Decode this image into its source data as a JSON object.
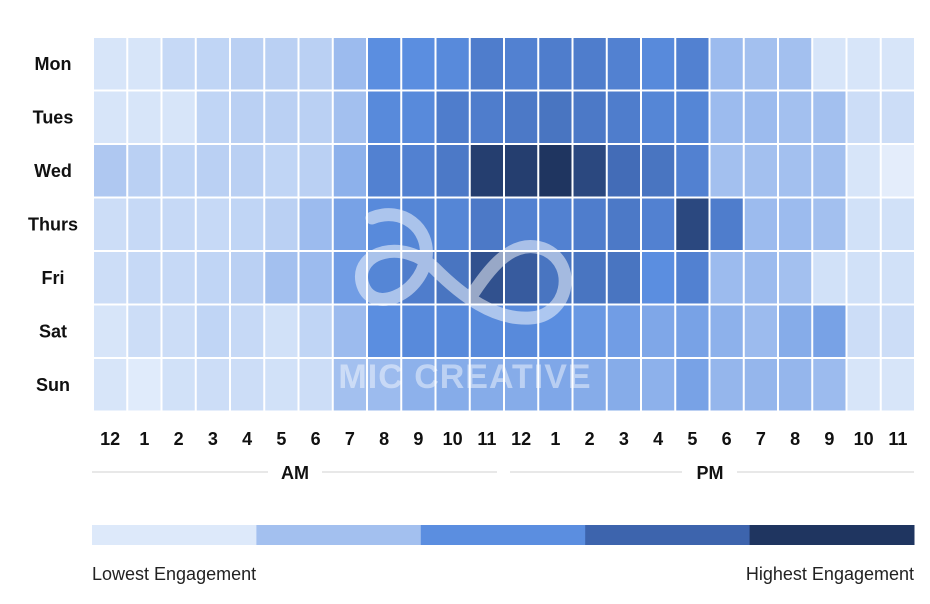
{
  "chart_data": {
    "type": "heatmap",
    "rows": [
      "Mon",
      "Tues",
      "Wed",
      "Thurs",
      "Fri",
      "Sat",
      "Sun"
    ],
    "columns": [
      "12",
      "1",
      "2",
      "3",
      "4",
      "5",
      "6",
      "7",
      "8",
      "9",
      "10",
      "11",
      "12",
      "1",
      "2",
      "3",
      "4",
      "5",
      "6",
      "7",
      "8",
      "9",
      "10",
      "11"
    ],
    "periods": [
      "AM",
      "PM"
    ],
    "scale": {
      "min_label": "Lowest Engagement",
      "max_label": "Highest Engagement",
      "levels": [
        1,
        2,
        3,
        4,
        5
      ],
      "colors": [
        "#dde9fa",
        "#a3c0ef",
        "#5b8ee0",
        "#3d64ad",
        "#1f3560"
      ]
    },
    "values": [
      [
        1.1,
        1.1,
        1.4,
        1.5,
        1.6,
        1.6,
        1.6,
        2.1,
        3.0,
        3.0,
        3.1,
        3.4,
        3.3,
        3.4,
        3.4,
        3.3,
        3.1,
        3.3,
        2.1,
        2.0,
        2.0,
        1.1,
        1.1,
        1.1
      ],
      [
        1.1,
        1.1,
        1.1,
        1.5,
        1.6,
        1.6,
        1.6,
        2.0,
        3.1,
        3.1,
        3.4,
        3.4,
        3.5,
        3.6,
        3.5,
        3.4,
        3.2,
        3.2,
        2.1,
        2.1,
        2.0,
        2.0,
        1.3,
        1.3
      ],
      [
        1.8,
        1.6,
        1.5,
        1.6,
        1.6,
        1.5,
        1.6,
        2.3,
        3.3,
        3.3,
        3.5,
        4.8,
        4.8,
        5.0,
        4.6,
        3.8,
        3.6,
        3.3,
        2.0,
        2.0,
        2.0,
        2.0,
        1.1,
        0.8
      ],
      [
        1.3,
        1.4,
        1.4,
        1.4,
        1.5,
        1.6,
        2.1,
        2.6,
        3.1,
        3.2,
        3.2,
        3.5,
        3.3,
        3.3,
        3.4,
        3.5,
        3.3,
        4.6,
        3.4,
        2.1,
        2.1,
        2.0,
        1.2,
        1.2
      ],
      [
        1.3,
        1.4,
        1.4,
        1.5,
        1.6,
        2.0,
        2.1,
        2.7,
        3.2,
        3.4,
        3.6,
        4.4,
        4.2,
        3.6,
        3.6,
        3.6,
        3.0,
        3.3,
        2.1,
        2.1,
        2.0,
        1.2,
        1.2,
        1.2
      ],
      [
        1.1,
        1.3,
        1.3,
        1.5,
        1.4,
        1.2,
        1.5,
        2.1,
        3.0,
        3.1,
        3.1,
        3.1,
        3.1,
        3.0,
        2.8,
        2.7,
        2.5,
        2.6,
        2.3,
        2.1,
        2.4,
        2.6,
        1.3,
        1.3
      ],
      [
        1.1,
        0.9,
        1.2,
        1.3,
        1.3,
        1.2,
        1.3,
        2.0,
        2.1,
        2.3,
        2.4,
        2.4,
        2.4,
        2.5,
        2.4,
        2.4,
        2.3,
        2.6,
        2.2,
        2.2,
        2.2,
        2.1,
        1.1,
        1.1
      ]
    ]
  },
  "watermark": {
    "text": "MIC CREATIVE"
  }
}
